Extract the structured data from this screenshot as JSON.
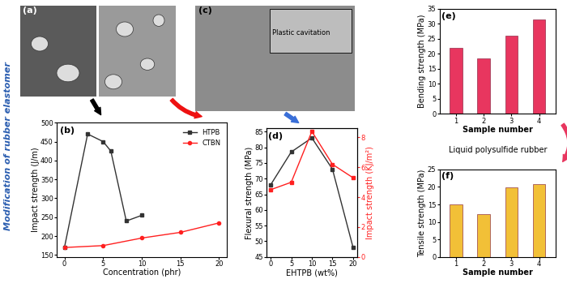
{
  "side_title": "Modification of rubber elastomer",
  "middle_label": "Liquid polysulfide rubber",
  "images": [
    {
      "label": "(a)"
    },
    {
      "label": "(c)",
      "annotation": "Plastic cavitation"
    }
  ],
  "chart_data": [
    {
      "type": "line",
      "annotation": "(b)",
      "xlabel": "Concentration (phr)",
      "ylabel": "Impact strength (J/m)",
      "xlim": [
        -1,
        21
      ],
      "xticks": [
        0,
        5,
        10,
        15,
        20
      ],
      "ylim": [
        145,
        500
      ],
      "yticks": [
        150,
        200,
        250,
        300,
        350,
        400,
        450,
        500
      ],
      "legend": "upper right",
      "series": [
        {
          "name": "HTPB",
          "color": "#333333",
          "marker": "square",
          "x": [
            0,
            3,
            5,
            6,
            8,
            10
          ],
          "values": [
            170,
            470,
            450,
            425,
            240,
            255
          ]
        },
        {
          "name": "CTBN",
          "color": "#ff2020",
          "marker": "circle",
          "x": [
            0,
            5,
            10,
            15,
            20
          ],
          "values": [
            170,
            175,
            195,
            210,
            235
          ]
        }
      ]
    },
    {
      "type": "line",
      "annotation": "(d)",
      "xlabel": "EHTPB (wt%)",
      "ylabel": "Flexural strength (MPa)",
      "y2label": "Impact strength (KJ/m²)",
      "xlim": [
        -1,
        21
      ],
      "xticks": [
        0,
        5,
        10,
        15,
        20
      ],
      "ylim": [
        45,
        86
      ],
      "yticks": [
        45,
        50,
        55,
        60,
        65,
        70,
        75,
        80,
        85
      ],
      "y2lim": [
        0,
        8.6
      ],
      "y2ticks": [
        0,
        2,
        4,
        6,
        8
      ],
      "series": [
        {
          "color": "#333333",
          "marker": "square",
          "x": [
            0,
            5,
            10,
            15,
            20
          ],
          "values": [
            68,
            78.5,
            83,
            73,
            48
          ]
        },
        {
          "color": "#ff2020",
          "marker": "square",
          "axis": "y2",
          "x": [
            0,
            5,
            10,
            15,
            20
          ],
          "values": [
            4.5,
            5.0,
            8.4,
            6.2,
            5.3
          ]
        }
      ]
    },
    {
      "type": "bar",
      "annotation": "(e)",
      "xlabel": "Sample number",
      "ylabel": "Bending strength (MPa)",
      "categories": [
        "1",
        "2",
        "3",
        "4"
      ],
      "values": [
        22,
        18.5,
        26,
        31.5
      ],
      "color": "#e8365f",
      "ylim": [
        0,
        35
      ],
      "yticks": [
        0,
        5,
        10,
        15,
        20,
        25,
        30,
        35
      ]
    },
    {
      "type": "bar",
      "annotation": "(f)",
      "xlabel": "Sample number",
      "ylabel": "Tensile strength (MPa)",
      "categories": [
        "1",
        "2",
        "3",
        "4"
      ],
      "values": [
        15,
        12.2,
        19.8,
        20.8
      ],
      "color": "#f2c037",
      "ylim": [
        0,
        25
      ],
      "yticks": [
        0,
        5,
        10,
        15,
        20,
        25
      ]
    }
  ]
}
